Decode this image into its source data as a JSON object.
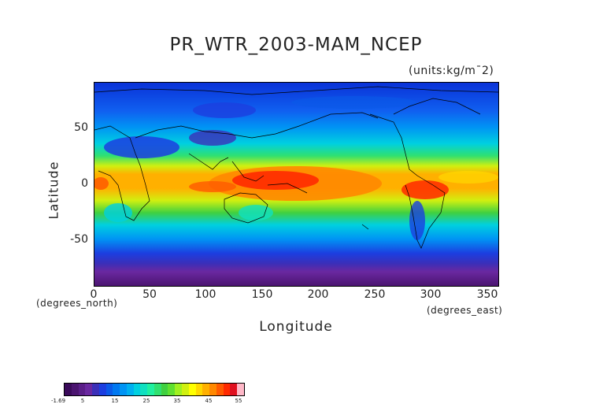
{
  "title": "PR_WTR_2003-MAM_NCEP",
  "units": "(units:kg/m¯2)",
  "axes": {
    "ylabel": "Latitude",
    "xlabel": "Longitude",
    "xunits_left": "(degrees_north)",
    "xunits_right": "(degrees_east)",
    "yticks": [
      "50",
      "0",
      "-50"
    ],
    "xticks": [
      "0",
      "50",
      "100",
      "150",
      "200",
      "250",
      "300",
      "350"
    ]
  },
  "colorbar": {
    "labels": [
      "-1.69",
      "5",
      "15",
      "25",
      "35",
      "45",
      "55"
    ],
    "colors": [
      "#3a0a5a",
      "#4b1470",
      "#5a1e88",
      "#6a28a0",
      "#3b2fb8",
      "#1c3ee0",
      "#0a5ae8",
      "#0078f0",
      "#0094f4",
      "#00b0f0",
      "#00d0e0",
      "#10e0c0",
      "#20f0a0",
      "#30e070",
      "#40d040",
      "#60e030",
      "#a0f020",
      "#d0f010",
      "#ffff00",
      "#ffd800",
      "#ffb000",
      "#ff8800",
      "#ff5a00",
      "#ff2a00",
      "#e01020",
      "#ffb8c8"
    ]
  },
  "map": {
    "type": "heatmap",
    "variable": "Precipitable water",
    "period": "2003 MAM",
    "lon_range": [
      0,
      360
    ],
    "lat_range": [
      -90,
      90
    ],
    "value_range": [
      -1.69,
      55
    ]
  }
}
